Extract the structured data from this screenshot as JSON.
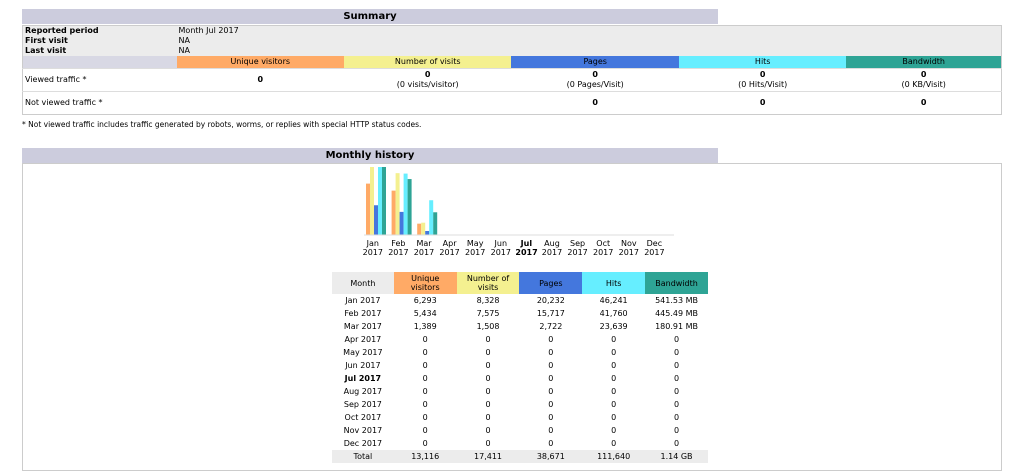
{
  "summary": {
    "title": "Summary",
    "info": [
      [
        "Reported period",
        "Month Jul 2017"
      ],
      [
        "First visit",
        "NA"
      ],
      [
        "Last visit",
        "NA"
      ]
    ],
    "columns": [
      "Unique visitors",
      "Number of visits",
      "Pages",
      "Hits",
      "Bandwidth"
    ],
    "colors": [
      "#ffaa66",
      "#f4f090",
      "#4477dd",
      "#66eeff",
      "#2ea495"
    ],
    "rows": [
      {
        "label": "Viewed traffic *",
        "values": [
          0,
          0,
          0,
          0,
          0
        ],
        "notes": [
          null,
          "(0 visits/visitor)",
          "(0 Pages/Visit)",
          "(0 Hits/Visit)",
          "(0 KB/Visit)"
        ]
      },
      {
        "label": "Not viewed traffic *",
        "values": [
          null,
          null,
          0,
          0,
          0
        ]
      }
    ],
    "footnote": "* Not viewed traffic includes traffic generated by robots, worms, or replies with special HTTP status codes."
  },
  "monthly_history": {
    "title": "Monthly history",
    "month_header": "Month",
    "columns": [
      "Unique visitors",
      "Number of visits",
      "Pages",
      "Hits",
      "Bandwidth"
    ],
    "colors": [
      "#ffaa66",
      "#f4f090",
      "#4477dd",
      "#66eeff",
      "#2ea495"
    ],
    "current_month": "Jul 2017",
    "rows": [
      {
        "month": "Jan 2017",
        "values": [
          {
            "value": 6293,
            "label": "6,293"
          },
          {
            "value": 8328,
            "label": "8,328"
          },
          {
            "value": 20232,
            "label": "20,232"
          },
          {
            "value": 46241,
            "label": "46,241"
          },
          {
            "value": 541.53,
            "label": "541.53 MB"
          }
        ]
      },
      {
        "month": "Feb 2017",
        "values": [
          {
            "value": 5434,
            "label": "5,434"
          },
          {
            "value": 7575,
            "label": "7,575"
          },
          {
            "value": 15717,
            "label": "15,717"
          },
          {
            "value": 41760,
            "label": "41,760"
          },
          {
            "value": 445.49,
            "label": "445.49 MB"
          }
        ]
      },
      {
        "month": "Mar 2017",
        "values": [
          {
            "value": 1389,
            "label": "1,389"
          },
          {
            "value": 1508,
            "label": "1,508"
          },
          {
            "value": 2722,
            "label": "2,722"
          },
          {
            "value": 23639,
            "label": "23,639"
          },
          {
            "value": 180.91,
            "label": "180.91 MB"
          }
        ]
      },
      {
        "month": "Apr 2017",
        "values": [
          0,
          0,
          0,
          0,
          0
        ]
      },
      {
        "month": "May 2017",
        "values": [
          0,
          0,
          0,
          0,
          0
        ]
      },
      {
        "month": "Jun 2017",
        "values": [
          0,
          0,
          0,
          0,
          0
        ]
      },
      {
        "month": "Jul 2017",
        "values": [
          0,
          0,
          0,
          0,
          0
        ]
      },
      {
        "month": "Aug 2017",
        "values": [
          0,
          0,
          0,
          0,
          0
        ]
      },
      {
        "month": "Sep 2017",
        "values": [
          0,
          0,
          0,
          0,
          0
        ]
      },
      {
        "month": "Oct 2017",
        "values": [
          0,
          0,
          0,
          0,
          0
        ]
      },
      {
        "month": "Nov 2017",
        "values": [
          0,
          0,
          0,
          0,
          0
        ]
      },
      {
        "month": "Dec 2017",
        "values": [
          0,
          0,
          0,
          0,
          0
        ]
      }
    ],
    "total": {
      "label": "Total",
      "values": [
        {
          "value": 13116,
          "label": "13,116"
        },
        {
          "value": 17411,
          "label": "17,411"
        },
        {
          "value": 38671,
          "label": "38,671"
        },
        {
          "value": 111640,
          "label": "111,640"
        },
        {
          "value": 1.14,
          "label": "1.14 GB"
        }
      ]
    }
  }
}
